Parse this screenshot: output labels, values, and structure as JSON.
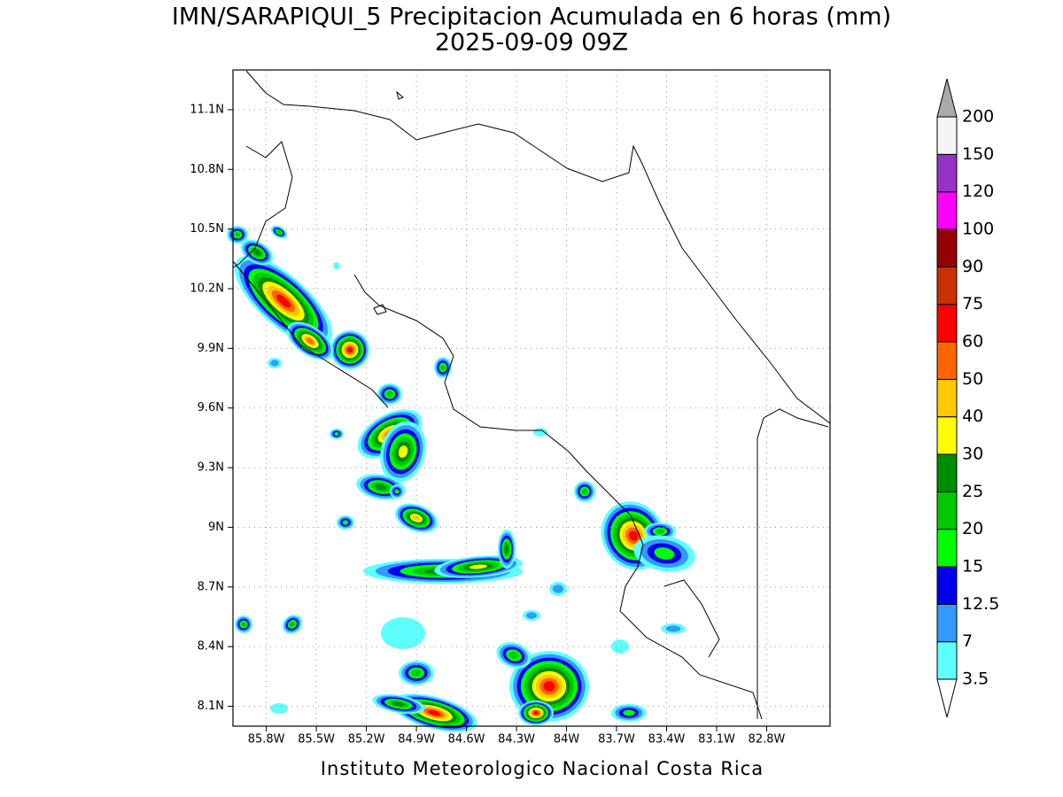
{
  "chart_data": {
    "type": "map",
    "title": "IMN/SARAPIQUI_5 Precipitacion Acumulada en 6 horas (mm)",
    "subtitle": "2025-09-09 09Z",
    "footer": "Instituto Meteorologico Nacional Costa Rica",
    "xlim": [
      -86.0,
      -82.42
    ],
    "ylim": [
      8.0,
      11.3
    ],
    "xticks": [
      {
        "value": -85.8,
        "label": "85.8W"
      },
      {
        "value": -85.5,
        "label": "85.5W"
      },
      {
        "value": -85.2,
        "label": "85.2W"
      },
      {
        "value": -84.9,
        "label": "84.9W"
      },
      {
        "value": -84.6,
        "label": "84.6W"
      },
      {
        "value": -84.3,
        "label": "84.3W"
      },
      {
        "value": -84.0,
        "label": "84W"
      },
      {
        "value": -83.7,
        "label": "83.7W"
      },
      {
        "value": -83.4,
        "label": "83.4W"
      },
      {
        "value": -83.1,
        "label": "83.1W"
      },
      {
        "value": -82.8,
        "label": "82.8W"
      }
    ],
    "yticks": [
      {
        "value": 8.1,
        "label": "8.1N"
      },
      {
        "value": 8.4,
        "label": "8.4N"
      },
      {
        "value": 8.7,
        "label": "8.7N"
      },
      {
        "value": 9.0,
        "label": "9N"
      },
      {
        "value": 9.3,
        "label": "9.3N"
      },
      {
        "value": 9.6,
        "label": "9.6N"
      },
      {
        "value": 9.9,
        "label": "9.9N"
      },
      {
        "value": 10.2,
        "label": "10.2N"
      },
      {
        "value": 10.5,
        "label": "10.5N"
      },
      {
        "value": 10.8,
        "label": "10.8N"
      },
      {
        "value": 11.1,
        "label": "11.1N"
      }
    ],
    "grid": true,
    "colorbar": {
      "levels": [
        "3.5",
        "7",
        "12.5",
        "15",
        "20",
        "25",
        "30",
        "40",
        "50",
        "60",
        "75",
        "90",
        "100",
        "120",
        "150",
        "200"
      ],
      "colors": [
        "#ffffff",
        "#5fffff",
        "#3399ff",
        "#0000ee",
        "#00ff00",
        "#00c800",
        "#008c00",
        "#ffff00",
        "#ffc800",
        "#ff6400",
        "#ff0000",
        "#c83200",
        "#960000",
        "#ff00ff",
        "#9632c8",
        "#f5f5f5",
        "#aaaaaa"
      ]
    }
  }
}
